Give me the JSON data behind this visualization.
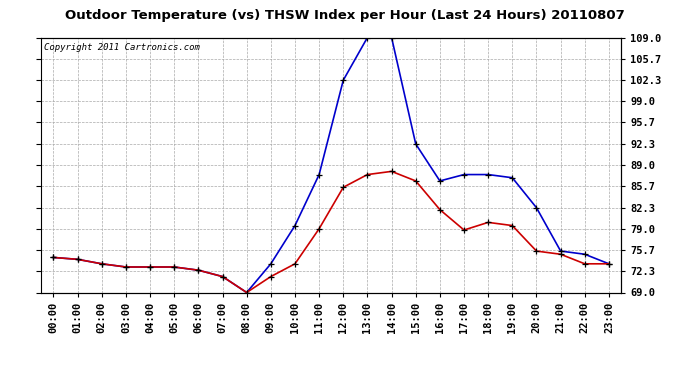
{
  "title": "Outdoor Temperature (vs) THSW Index per Hour (Last 24 Hours) 20110807",
  "copyright": "Copyright 2011 Cartronics.com",
  "hours": [
    "00:00",
    "01:00",
    "02:00",
    "03:00",
    "04:00",
    "05:00",
    "06:00",
    "07:00",
    "08:00",
    "09:00",
    "10:00",
    "11:00",
    "12:00",
    "13:00",
    "14:00",
    "15:00",
    "16:00",
    "17:00",
    "18:00",
    "19:00",
    "20:00",
    "21:00",
    "22:00",
    "23:00"
  ],
  "temp_red": [
    74.5,
    74.2,
    73.5,
    73.0,
    73.0,
    73.0,
    72.5,
    71.5,
    69.0,
    71.5,
    73.5,
    79.0,
    85.5,
    87.5,
    88.0,
    86.5,
    82.0,
    78.8,
    80.0,
    79.5,
    75.5,
    75.0,
    73.5,
    73.5
  ],
  "thsw_blue": [
    74.5,
    74.2,
    73.5,
    73.0,
    73.0,
    73.0,
    72.5,
    71.5,
    69.0,
    73.5,
    79.5,
    87.5,
    102.3,
    109.0,
    109.0,
    92.3,
    86.5,
    87.5,
    87.5,
    87.0,
    82.3,
    75.5,
    75.0,
    73.5
  ],
  "ylim_min": 69.0,
  "ylim_max": 109.0,
  "yticks": [
    69.0,
    72.3,
    75.7,
    79.0,
    82.3,
    85.7,
    89.0,
    92.3,
    95.7,
    99.0,
    102.3,
    105.7,
    109.0
  ],
  "ytick_labels": [
    "69.0",
    "72.3",
    "75.7",
    "79.0",
    "82.3",
    "85.7",
    "89.0",
    "92.3",
    "95.7",
    "99.0",
    "102.3",
    "105.7",
    "109.0"
  ],
  "bg_color": "#ffffff",
  "grid_color": "#aaaaaa",
  "red_color": "#cc0000",
  "blue_color": "#0000cc",
  "title_fontsize": 9.5,
  "copyright_fontsize": 6.5,
  "tick_fontsize": 7.5,
  "marker": "+",
  "marker_size": 5,
  "marker_color": "#000000",
  "line_width": 1.2
}
